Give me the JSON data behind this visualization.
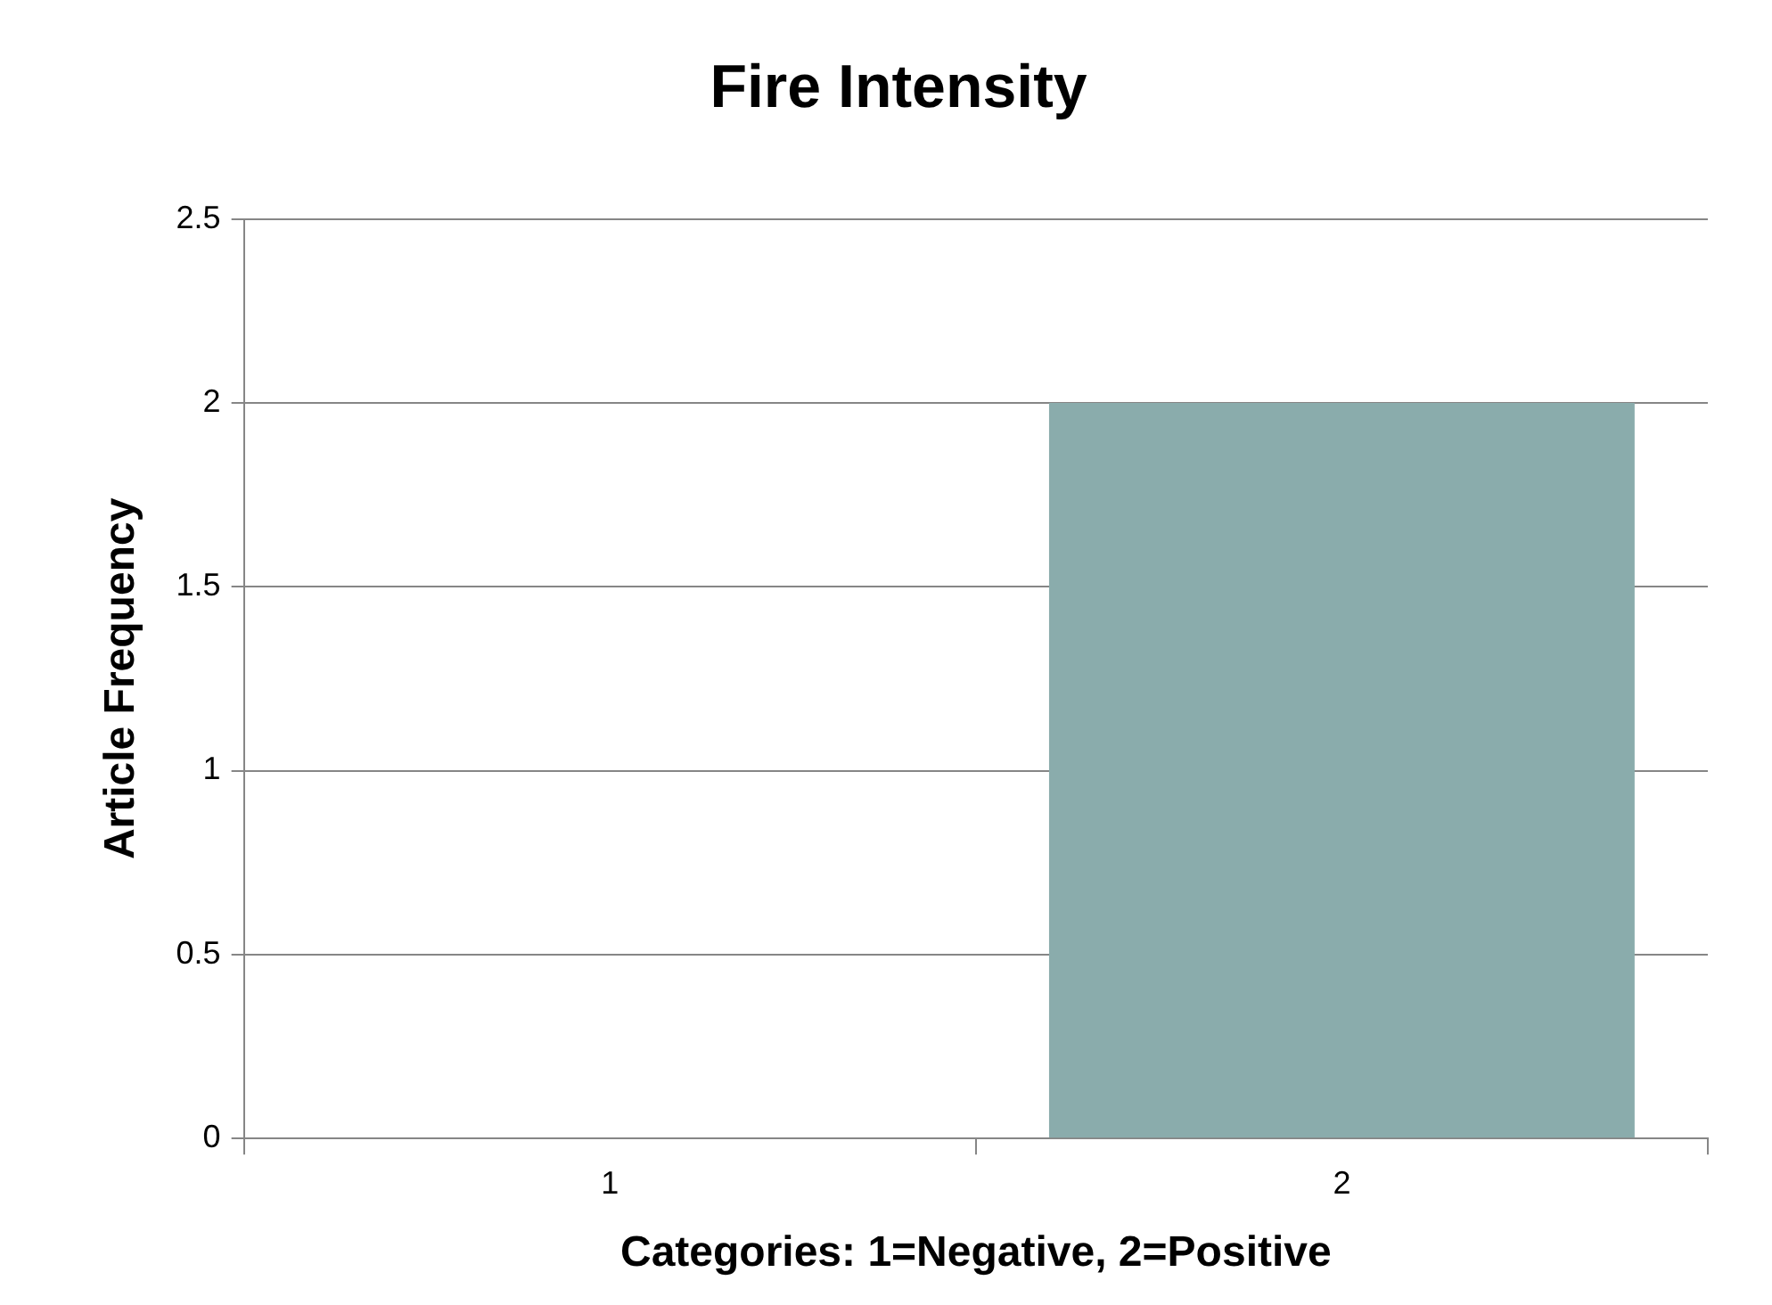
{
  "chart_data": {
    "type": "bar",
    "title": "Fire Intensity",
    "xlabel": "Categories: 1=Negative, 2=Positive",
    "ylabel": "Article Frequency",
    "categories": [
      "1",
      "2"
    ],
    "values": [
      0,
      2
    ],
    "color": "#8aacac",
    "ylim": [
      0,
      2.5
    ],
    "yticks": [
      0,
      0.5,
      1,
      1.5,
      2,
      2.5
    ],
    "grid": "y",
    "legend": false
  }
}
